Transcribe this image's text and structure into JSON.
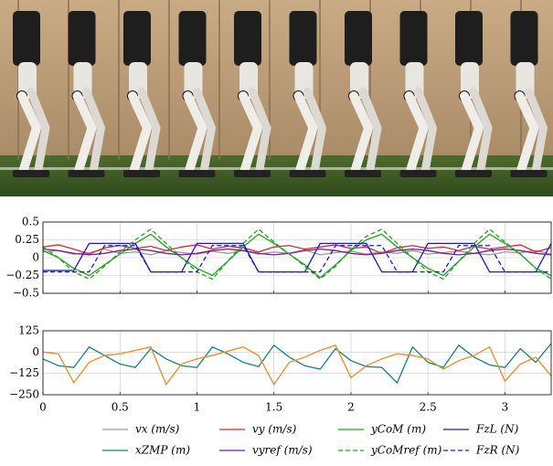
{
  "chart_data": [
    {
      "type": "line",
      "x": [
        0,
        0.1,
        0.2,
        0.3,
        0.4,
        0.5,
        0.6,
        0.7,
        0.8,
        0.9,
        1.0,
        1.1,
        1.2,
        1.3,
        1.4,
        1.5,
        1.6,
        1.7,
        1.8,
        1.9,
        2.0,
        2.1,
        2.2,
        2.3,
        2.4,
        2.5,
        2.6,
        2.7,
        2.8,
        2.9,
        3.0,
        3.1,
        3.2,
        3.3
      ],
      "xlim": [
        0,
        3.3
      ],
      "xticks": [
        0,
        0.5,
        1,
        1.5,
        2,
        2.5,
        3
      ],
      "ylim": [
        -0.5,
        0.5
      ],
      "yticks": [
        {
          "value": -0.5,
          "label": "−0.5"
        },
        {
          "value": -0.25,
          "label": "−0.25"
        },
        0,
        0.25,
        0.5
      ],
      "grid": true,
      "series": [
        {
          "name": "vx (m/s)",
          "color": "#999999",
          "dash": false,
          "values": [
            0.08,
            0.1,
            0.05,
            0.07,
            0.12,
            0.06,
            0.08,
            0.04,
            0.1,
            0.07,
            0.05,
            0.09,
            0.06,
            0.1,
            0.05,
            0.08,
            0.06,
            0.11,
            0.04,
            0.07,
            0.09,
            0.05,
            0.08,
            0.06,
            0.1,
            0.05,
            0.07,
            0.09,
            0.06,
            0.04,
            0.08,
            0.07,
            0.1,
            0.05
          ]
        },
        {
          "name": "vy (m/s)",
          "color": "#e0262b",
          "dash": false,
          "values": [
            0.15,
            0.18,
            0.12,
            0.05,
            0.14,
            0.17,
            0.13,
            0.16,
            0.1,
            0.15,
            0.18,
            0.12,
            0.16,
            0.14,
            0.08,
            0.15,
            0.17,
            0.12,
            0.15,
            0.18,
            0.13,
            0.15,
            0.06,
            0.14,
            0.17,
            0.13,
            0.15,
            0.1,
            0.16,
            0.12,
            0.15,
            0.18,
            0.08,
            0.14
          ]
        },
        {
          "name": "yCoM (m)",
          "color": "#22a31f",
          "dash": false,
          "values": [
            0.1,
            0,
            -0.15,
            -0.25,
            -0.1,
            0.05,
            0.2,
            0.33,
            0.15,
            0,
            -0.15,
            -0.25,
            -0.05,
            0.15,
            0.33,
            0.2,
            0.05,
            -0.1,
            -0.28,
            -0.1,
            0.1,
            0.25,
            0.33,
            0.15,
            0,
            -0.15,
            -0.25,
            -0.05,
            0.15,
            0.33,
            0.2,
            0.05,
            -0.15,
            -0.25
          ]
        },
        {
          "name": "FzL (N)",
          "color": "#1a1ad6",
          "dash": false,
          "values": [
            -0.18,
            -0.18,
            -0.18,
            0.2,
            0.2,
            0.2,
            0.2,
            -0.2,
            -0.2,
            -0.2,
            0.2,
            0.2,
            0.2,
            0.2,
            -0.2,
            -0.2,
            -0.2,
            -0.2,
            0.2,
            0.2,
            0.2,
            0.2,
            -0.2,
            -0.2,
            -0.2,
            0.2,
            0.2,
            0.2,
            0.2,
            -0.2,
            -0.2,
            -0.2,
            -0.2,
            0.2
          ]
        },
        {
          "name": "vyref (m/s)",
          "color": "#7b1f8f",
          "dash": false,
          "values": [
            0.12,
            0.1,
            0.06,
            0.04,
            0.06,
            0.1,
            0.12,
            0.1,
            0.06,
            0.04,
            0.06,
            0.1,
            0.12,
            0.1,
            0.06,
            0.04,
            0.06,
            0.1,
            0.12,
            0.1,
            0.06,
            0.04,
            0.06,
            0.1,
            0.12,
            0.1,
            0.06,
            0.04,
            0.06,
            0.1,
            0.12,
            0.1,
            0.06,
            0.04
          ]
        },
        {
          "name": "yCoMref (m)",
          "color": "#22a31f",
          "dash": true,
          "values": [
            0.15,
            0,
            -0.2,
            -0.3,
            -0.12,
            0.08,
            0.25,
            0.4,
            0.2,
            0,
            -0.2,
            -0.3,
            -0.05,
            0.2,
            0.4,
            0.22,
            0.05,
            -0.12,
            -0.3,
            -0.12,
            0.12,
            0.3,
            0.4,
            0.2,
            0,
            -0.2,
            -0.3,
            -0.05,
            0.2,
            0.4,
            0.22,
            0.05,
            -0.15,
            -0.3
          ]
        },
        {
          "name": "FzR (N)",
          "color": "#1a1ad6",
          "dash": true,
          "values": [
            -0.2,
            -0.2,
            -0.2,
            -0.2,
            0.17,
            0.17,
            0.17,
            -0.2,
            -0.2,
            -0.2,
            -0.2,
            0.17,
            0.17,
            0.17,
            -0.2,
            -0.2,
            -0.2,
            -0.2,
            -0.2,
            0.17,
            0.17,
            0.17,
            0.17,
            -0.2,
            -0.2,
            -0.2,
            -0.2,
            0.17,
            0.17,
            0.17,
            -0.2,
            -0.2,
            -0.2,
            -0.2
          ]
        }
      ]
    },
    {
      "type": "line",
      "x": [
        0,
        0.1,
        0.2,
        0.3,
        0.4,
        0.5,
        0.6,
        0.7,
        0.8,
        0.9,
        1.0,
        1.1,
        1.2,
        1.3,
        1.4,
        1.5,
        1.6,
        1.7,
        1.8,
        1.9,
        2.0,
        2.1,
        2.2,
        2.3,
        2.4,
        2.5,
        2.6,
        2.7,
        2.8,
        2.9,
        3.0,
        3.1,
        3.2,
        3.3
      ],
      "xlim": [
        0,
        3.3
      ],
      "xticks": [
        0,
        0.5,
        1,
        1.5,
        2,
        2.5,
        3
      ],
      "ylim": [
        -250,
        125
      ],
      "yticks": [
        {
          "value": -250,
          "label": "−250"
        },
        {
          "value": -125,
          "label": "−125"
        },
        0,
        125
      ],
      "grid": true,
      "series": [
        {
          "name": "xZMP (m)",
          "color": "#13857f",
          "dash": false,
          "values": [
            -40,
            -80,
            -90,
            30,
            -20,
            -70,
            -90,
            20,
            -40,
            -80,
            -90,
            30,
            -10,
            -60,
            -85,
            40,
            -30,
            -80,
            -100,
            20,
            -50,
            -85,
            -90,
            -180,
            30,
            -60,
            -90,
            40,
            -30,
            -75,
            -90,
            20,
            -60,
            50
          ]
        },
        {
          "color": "#f28a1c",
          "dash": false,
          "values": [
            0,
            -10,
            -180,
            -60,
            -20,
            -10,
            10,
            30,
            -190,
            -70,
            -40,
            -20,
            5,
            30,
            -20,
            -190,
            -60,
            -30,
            10,
            40,
            -150,
            -80,
            -40,
            -10,
            -20,
            -40,
            -100,
            -50,
            -20,
            30,
            -170,
            -70,
            -30,
            -140
          ]
        }
      ]
    }
  ]
}
